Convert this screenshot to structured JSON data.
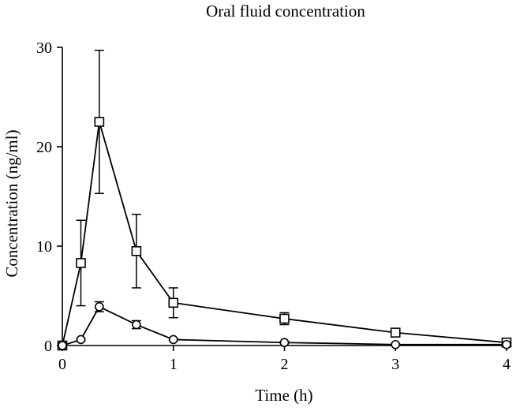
{
  "chart_data": {
    "type": "line",
    "title": "Oral fluid concentration",
    "xlabel": "Time (h)",
    "ylabel": "Concentration (ng/ml)",
    "xlim": [
      0,
      4
    ],
    "ylim": [
      0,
      30
    ],
    "x_ticks": [
      "0",
      "1",
      "2",
      "3",
      "4"
    ],
    "y_ticks": [
      "0",
      "10",
      "20",
      "30"
    ],
    "grid": false,
    "legend": "none",
    "series": [
      {
        "marker": "square",
        "points": [
          {
            "x": 0,
            "y": 0,
            "err": 0
          },
          {
            "x": 0.167,
            "y": 8.3,
            "err": 4.3
          },
          {
            "x": 0.333,
            "y": 22.5,
            "err": 7.2
          },
          {
            "x": 0.667,
            "y": 9.5,
            "err": 3.7
          },
          {
            "x": 1,
            "y": 4.3,
            "err": 1.5
          },
          {
            "x": 2,
            "y": 2.7,
            "err": 0.6
          },
          {
            "x": 3,
            "y": 1.3,
            "err": 0.2
          },
          {
            "x": 4,
            "y": 0.3,
            "err": 0.1
          }
        ]
      },
      {
        "marker": "circle",
        "points": [
          {
            "x": 0,
            "y": 0,
            "err": 0
          },
          {
            "x": 0.167,
            "y": 0.6,
            "err": 0.1
          },
          {
            "x": 0.333,
            "y": 3.9,
            "err": 0.5
          },
          {
            "x": 0.667,
            "y": 2.1,
            "err": 0.4
          },
          {
            "x": 1,
            "y": 0.6,
            "err": 0.1
          },
          {
            "x": 2,
            "y": 0.3,
            "err": 0.1
          },
          {
            "x": 3,
            "y": 0.1,
            "err": 0.05
          },
          {
            "x": 4,
            "y": 0.1,
            "err": 0.05
          }
        ]
      }
    ]
  }
}
